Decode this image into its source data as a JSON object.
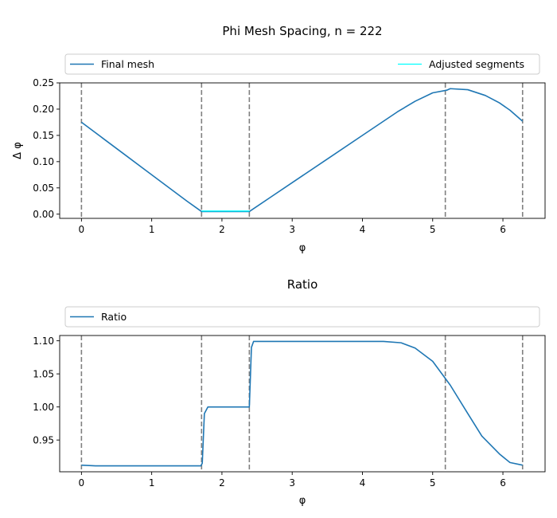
{
  "chart_data": [
    {
      "type": "line",
      "title": "Phi Mesh Spacing, n = 222",
      "xlabel": "φ",
      "ylabel": "Δ φ",
      "xlim": [
        -0.31,
        6.6
      ],
      "ylim": [
        -0.008,
        0.25
      ],
      "xticks": [
        0,
        1,
        2,
        3,
        4,
        5,
        6
      ],
      "yticks": [
        0.0,
        0.05,
        0.1,
        0.15,
        0.2,
        0.25
      ],
      "ytick_labels": [
        "0.00",
        "0.05",
        "0.10",
        "0.15",
        "0.20",
        "0.25"
      ],
      "legend_position": "top, above axes, expanded",
      "grid": false,
      "series": [
        {
          "name": "Final mesh",
          "color": "#1f77b4",
          "x": [
            0,
            0.3,
            0.6,
            0.9,
            1.2,
            1.5,
            1.71,
            2.0,
            2.39,
            2.7,
            3.0,
            3.5,
            4.0,
            4.5,
            4.75,
            5.0,
            5.2,
            5.25,
            5.5,
            5.75,
            5.95,
            6.1,
            6.28
          ],
          "y": [
            0.175,
            0.145,
            0.115,
            0.085,
            0.055,
            0.025,
            0.005,
            0.005,
            0.005,
            0.033,
            0.06,
            0.105,
            0.15,
            0.195,
            0.215,
            0.231,
            0.236,
            0.239,
            0.237,
            0.226,
            0.212,
            0.198,
            0.177
          ]
        },
        {
          "name": "Adjusted segments",
          "color": "#00ffff",
          "x": [
            1.71,
            2.39
          ],
          "y": [
            0.006,
            0.006
          ]
        }
      ],
      "vlines": {
        "x": [
          0,
          1.71,
          2.39,
          5.18,
          6.28
        ],
        "color": "#808080",
        "style": "dashed"
      }
    },
    {
      "type": "line",
      "title": "Ratio",
      "xlabel": "φ",
      "ylabel": "",
      "xlim": [
        -0.31,
        6.6
      ],
      "ylim": [
        0.902,
        1.108
      ],
      "xticks": [
        0,
        1,
        2,
        3,
        4,
        5,
        6
      ],
      "yticks": [
        0.95,
        1.0,
        1.05,
        1.1
      ],
      "ytick_labels": [
        "0.95",
        "1.00",
        "1.05",
        "1.10"
      ],
      "legend_position": "top, above axes, expanded",
      "grid": false,
      "series": [
        {
          "name": "Ratio",
          "color": "#1f77b4",
          "x": [
            0,
            0.2,
            0.5,
            1.0,
            1.5,
            1.7,
            1.72,
            1.75,
            1.8,
            2.0,
            2.39,
            2.42,
            2.45,
            2.5,
            3.0,
            3.5,
            4.0,
            4.3,
            4.55,
            4.75,
            5.0,
            5.25,
            5.5,
            5.7,
            5.95,
            6.1,
            6.28
          ],
          "y": [
            0.912,
            0.911,
            0.911,
            0.911,
            0.911,
            0.911,
            0.915,
            0.99,
            1.0,
            1.0,
            1.0,
            1.09,
            1.099,
            1.099,
            1.099,
            1.099,
            1.099,
            1.099,
            1.097,
            1.089,
            1.069,
            1.033,
            0.99,
            0.956,
            0.929,
            0.916,
            0.912
          ]
        }
      ],
      "vlines": {
        "x": [
          0,
          1.71,
          2.39,
          5.18,
          6.28
        ],
        "color": "#808080",
        "style": "dashed"
      }
    }
  ]
}
